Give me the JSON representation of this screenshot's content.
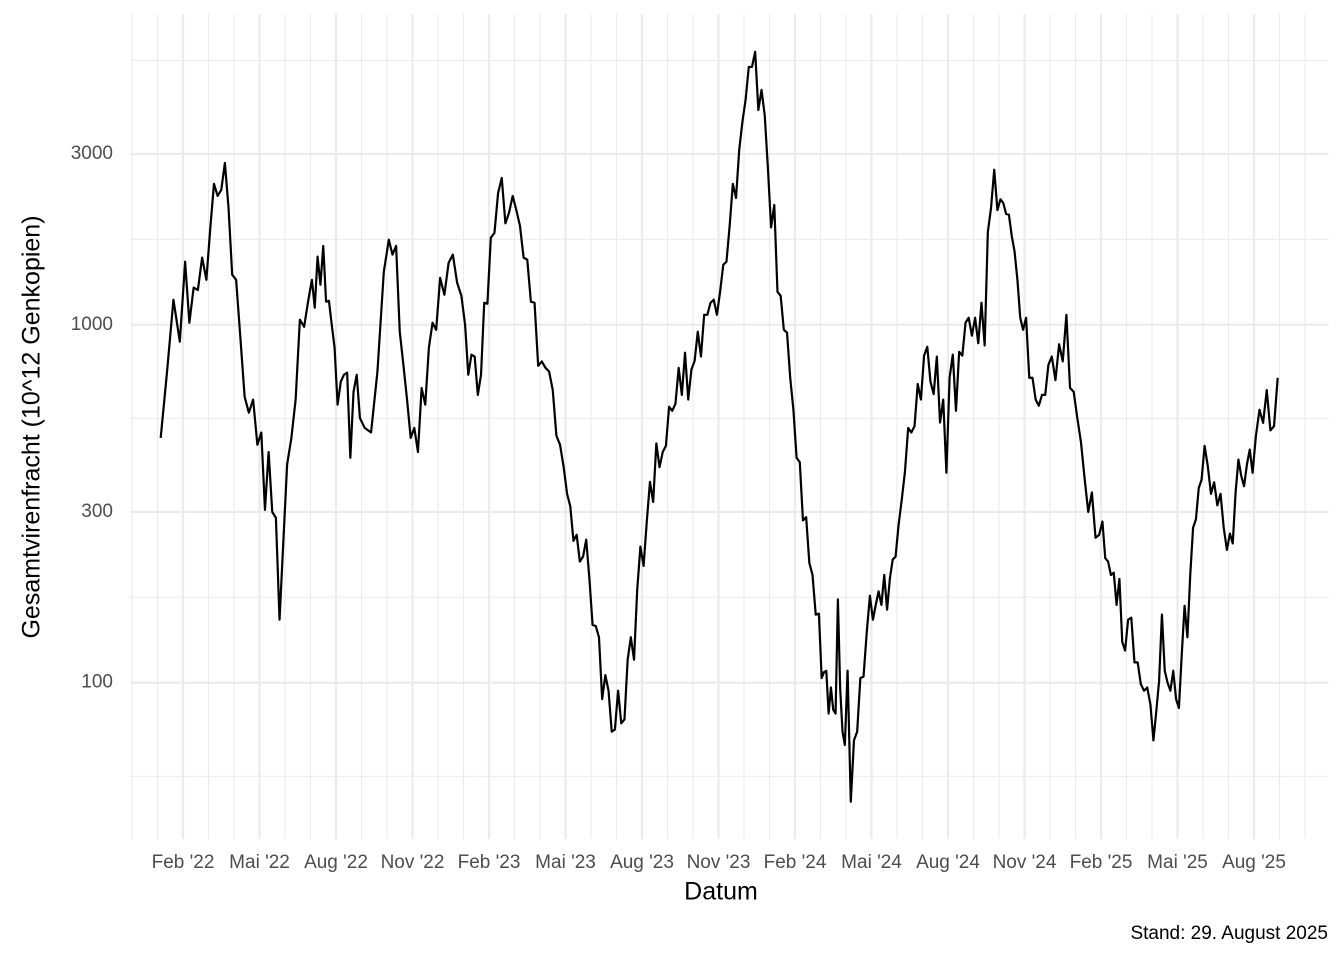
{
  "chart_data": {
    "type": "line",
    "y_label": "Gesamtvirenfracht (10^12 Genkopien)",
    "x_label": "Datum",
    "caption": "Stand: 29. August 2025",
    "color": "#000000",
    "log_y": true,
    "grid": true,
    "xlim": [
      "2021-12",
      "2025-11"
    ],
    "xticks": [
      {
        "value": "2022-02",
        "label": "Feb '22"
      },
      {
        "value": "2022-05",
        "label": "Mai '22"
      },
      {
        "value": "2022-08",
        "label": "Aug '22"
      },
      {
        "value": "2022-11",
        "label": "Nov '22"
      },
      {
        "value": "2023-02",
        "label": "Feb '23"
      },
      {
        "value": "2023-05",
        "label": "Mai '23"
      },
      {
        "value": "2023-08",
        "label": "Aug '23"
      },
      {
        "value": "2023-11",
        "label": "Nov '23"
      },
      {
        "value": "2024-02",
        "label": "Feb '24"
      },
      {
        "value": "2024-05",
        "label": "Mai '24"
      },
      {
        "value": "2024-08",
        "label": "Aug '24"
      },
      {
        "value": "2024-11",
        "label": "Nov '24"
      },
      {
        "value": "2025-02",
        "label": "Feb '25"
      },
      {
        "value": "2025-05",
        "label": "Mai '25"
      },
      {
        "value": "2025-08",
        "label": "Aug '25"
      }
    ],
    "x_minor_ticks": [
      "2021-12",
      "2022-01",
      "2022-03",
      "2022-04",
      "2022-06",
      "2022-07",
      "2022-09",
      "2022-10",
      "2022-12",
      "2023-01",
      "2023-03",
      "2023-04",
      "2023-06",
      "2023-07",
      "2023-09",
      "2023-10",
      "2023-12",
      "2024-01",
      "2024-03",
      "2024-04",
      "2024-06",
      "2024-07",
      "2024-09",
      "2024-10",
      "2024-12",
      "2025-01",
      "2025-03",
      "2025-04",
      "2025-06",
      "2025-07",
      "2025-09",
      "2025-10"
    ],
    "ylim": [
      36.6,
      7380
    ],
    "yticks": [
      100,
      300,
      1000,
      3000
    ],
    "y_minor_ticks": [
      54.77,
      173.2,
      547.7,
      1732,
      5477
    ],
    "x": [
      "2022-01",
      "2022-01",
      "2022-01",
      "2022-01",
      "2022-02",
      "2022-02",
      "2022-02",
      "2022-02",
      "2022-02",
      "2022-02",
      "2022-03",
      "2022-03",
      "2022-03",
      "2022-03",
      "2022-03",
      "2022-03",
      "2022-03",
      "2022-04",
      "2022-04",
      "2022-04",
      "2022-04",
      "2022-04",
      "2022-04",
      "2022-05",
      "2022-05",
      "2022-05",
      "2022-05",
      "2022-05",
      "2022-05",
      "2022-05",
      "2022-06",
      "2022-06",
      "2022-06",
      "2022-06",
      "2022-06",
      "2022-06",
      "2022-07",
      "2022-07",
      "2022-07",
      "2022-07",
      "2022-07",
      "2022-07",
      "2022-07",
      "2022-07",
      "2022-07",
      "2022-08",
      "2022-08",
      "2022-08",
      "2022-08",
      "2022-08",
      "2022-08",
      "2022-08",
      "2022-08",
      "2022-09",
      "2022-09",
      "2022-09",
      "2022-09",
      "2022-10",
      "2022-10",
      "2022-10",
      "2022-10",
      "2022-10",
      "2022-10",
      "2022-10",
      "2022-11",
      "2022-11",
      "2022-11",
      "2022-11",
      "2022-11",
      "2022-11",
      "2022-11",
      "2022-12",
      "2022-12",
      "2022-12",
      "2022-12",
      "2022-12",
      "2022-12",
      "2023-01",
      "2023-01",
      "2023-01",
      "2023-01",
      "2023-01",
      "2023-01",
      "2023-01",
      "2023-01",
      "2023-02",
      "2023-02",
      "2023-02",
      "2023-02",
      "2023-02",
      "2023-02",
      "2023-02",
      "2023-03",
      "2023-03",
      "2023-03",
      "2023-03",
      "2023-03",
      "2023-03",
      "2023-03",
      "2023-04",
      "2023-04",
      "2023-04",
      "2023-04",
      "2023-04",
      "2023-04",
      "2023-04",
      "2023-05",
      "2023-05",
      "2023-05",
      "2023-05",
      "2023-05",
      "2023-05",
      "2023-05",
      "2023-05",
      "2023-06",
      "2023-06",
      "2023-06",
      "2023-06",
      "2023-06",
      "2023-06",
      "2023-06",
      "2023-06",
      "2023-07",
      "2023-07",
      "2023-07",
      "2023-07",
      "2023-07",
      "2023-07",
      "2023-07",
      "2023-07",
      "2023-08",
      "2023-08",
      "2023-08",
      "2023-08",
      "2023-08",
      "2023-08",
      "2023-08",
      "2023-08",
      "2023-09",
      "2023-09",
      "2023-09",
      "2023-09",
      "2023-09",
      "2023-09",
      "2023-09",
      "2023-09",
      "2023-10",
      "2023-10",
      "2023-10",
      "2023-10",
      "2023-10",
      "2023-10",
      "2023-10",
      "2023-10",
      "2023-11",
      "2023-11",
      "2023-11",
      "2023-11",
      "2023-11",
      "2023-11",
      "2023-11",
      "2023-11",
      "2023-12",
      "2023-12",
      "2023-12",
      "2023-12",
      "2023-12",
      "2023-12",
      "2023-12",
      "2023-12",
      "2024-01",
      "2024-01",
      "2024-01",
      "2024-01",
      "2024-01",
      "2024-01",
      "2024-01",
      "2024-01",
      "2024-02",
      "2024-02",
      "2024-02",
      "2024-02",
      "2024-02",
      "2024-02",
      "2024-02",
      "2024-02",
      "2024-03",
      "2024-03",
      "2024-03",
      "2024-03",
      "2024-03",
      "2024-03",
      "2024-03",
      "2024-03",
      "2024-03",
      "2024-03",
      "2024-03",
      "2024-04",
      "2024-04",
      "2024-04",
      "2024-04",
      "2024-04",
      "2024-04",
      "2024-04",
      "2024-04",
      "2024-05",
      "2024-05",
      "2024-05",
      "2024-05",
      "2024-05",
      "2024-05",
      "2024-05",
      "2024-05",
      "2024-05",
      "2024-06",
      "2024-06",
      "2024-06",
      "2024-06",
      "2024-06",
      "2024-06",
      "2024-06",
      "2024-06",
      "2024-07",
      "2024-07",
      "2024-07",
      "2024-07",
      "2024-07",
      "2024-07",
      "2024-07",
      "2024-07",
      "2024-08",
      "2024-08",
      "2024-08",
      "2024-08",
      "2024-08",
      "2024-08",
      "2024-08",
      "2024-08",
      "2024-09",
      "2024-09",
      "2024-09",
      "2024-09",
      "2024-09",
      "2024-09",
      "2024-09",
      "2024-09",
      "2024-10",
      "2024-10",
      "2024-10",
      "2024-10",
      "2024-10",
      "2024-10",
      "2024-10",
      "2024-10",
      "2024-10",
      "2024-11",
      "2024-11",
      "2024-11",
      "2024-11",
      "2024-11",
      "2024-11",
      "2024-11",
      "2024-11",
      "2024-12",
      "2024-12",
      "2024-12",
      "2024-12",
      "2024-12",
      "2024-12",
      "2024-12",
      "2025-01",
      "2025-01",
      "2025-01",
      "2025-01",
      "2025-01",
      "2025-01",
      "2025-01",
      "2025-02",
      "2025-02",
      "2025-02",
      "2025-02",
      "2025-02",
      "2025-02",
      "2025-02",
      "2025-02",
      "2025-02",
      "2025-03",
      "2025-03",
      "2025-03",
      "2025-03",
      "2025-03",
      "2025-03",
      "2025-03",
      "2025-03",
      "2025-04",
      "2025-04",
      "2025-04",
      "2025-04",
      "2025-04",
      "2025-04",
      "2025-04",
      "2025-04",
      "2025-04",
      "2025-05",
      "2025-05",
      "2025-05",
      "2025-05",
      "2025-05",
      "2025-05",
      "2025-05",
      "2025-05",
      "2025-05",
      "2025-06",
      "2025-06",
      "2025-06",
      "2025-06",
      "2025-06",
      "2025-06",
      "2025-06",
      "2025-06",
      "2025-07",
      "2025-07",
      "2025-07",
      "2025-07",
      "2025-07",
      "2025-07",
      "2025-07",
      "2025-07",
      "2025-07",
      "2025-08",
      "2025-08",
      "2025-08",
      "2025-08",
      "2025-08",
      "2025-08",
      "2025-08"
    ],
    "values": [
      483,
      740,
      1175,
      897,
      1500,
      1013,
      1270,
      1250,
      1540,
      1335,
      1866,
      2475,
      2290,
      2380,
      2830,
      2120,
      1380,
      1335,
      920,
      629,
      568,
      618,
      462,
      500,
      304,
      441,
      300,
      289,
      150,
      243,
      407,
      483,
      618,
      1033,
      987,
      1175,
      1335,
      1116,
      1550,
      1293,
      1660,
      1160,
      1167,
      1000,
      863,
      598,
      693,
      725,
      735,
      425,
      650,
      725,
      549,
      515,
      500,
      740,
      1406,
      1728,
      1570,
      1660,
      956,
      773,
      618,
      483,
      515,
      441,
      666,
      598,
      863,
      1013,
      968,
      1352,
      1213,
      1490,
      1570,
      1310,
      1205,
      1000,
      725,
      825,
      815,
      637,
      725,
      1152,
      1145,
      1750,
      1806,
      2335,
      2570,
      1920,
      2055,
      2290,
      2090,
      1890,
      1540,
      1520,
      1160,
      1152,
      768,
      790,
      758,
      740,
      657,
      490,
      462,
      400,
      337,
      311,
      249,
      259,
      218,
      225,
      251,
      195,
      145,
      144,
      134,
      90,
      105,
      95,
      73,
      74,
      95,
      77,
      79,
      116,
      134,
      116,
      182,
      240,
      212,
      282,
      364,
      320,
      466,
      400,
      441,
      459,
      590,
      575,
      602,
      758,
      637,
      835,
      618,
      749,
      792,
      956,
      815,
      1066,
      1066,
      1152,
      1175,
      1066,
      1236,
      1471,
      1500,
      1890,
      2475,
      2260,
      3080,
      3690,
      4250,
      5250,
      5250,
      5790,
      3980,
      4530,
      3850,
      2740,
      1870,
      2160,
      1236,
      1205,
      968,
      950,
      711,
      578,
      425,
      413,
      284,
      290,
      216,
      200,
      155,
      156,
      103,
      107,
      108,
      82,
      97,
      84,
      82,
      171,
      96,
      73,
      67,
      108,
      46.5,
      69,
      73,
      103,
      104,
      138,
      175,
      150,
      165,
      180,
      165,
      200,
      160,
      196,
      221,
      225,
      276,
      325,
      389,
      515,
      500,
      521,
      683,
      618,
      820,
      868,
      693,
      640,
      815,
      533,
      618,
      386,
      711,
      825,
      575,
      840,
      820,
      1013,
      1046,
      932,
      1046,
      888,
      1152,
      875,
      1816,
      2120,
      2710,
      2090,
      2240,
      2190,
      2040,
      2030,
      1770,
      1600,
      1335,
      1046,
      968,
      1046,
      711,
      711,
      618,
      594,
      637,
      637,
      773,
      815,
      700,
      882,
      790,
      1066,
      666,
      650,
      549,
      470,
      372,
      300,
      340,
      254,
      259,
      282,
      223,
      218,
      200,
      203,
      165,
      195,
      130,
      123,
      150,
      152,
      114,
      114,
      99,
      95,
      97,
      87,
      69,
      83,
      101,
      155,
      108,
      100,
      95,
      108,
      90,
      85,
      120,
      164,
      134,
      200,
      271,
      286,
      350,
      369,
      459,
      403,
      337,
      363,
      313,
      337,
      271,
      235,
      261,
      245,
      340,
      420,
      378,
      354,
      407,
      448,
      386,
      487,
      579,
      532,
      657,
      507,
      521,
      711
    ]
  }
}
